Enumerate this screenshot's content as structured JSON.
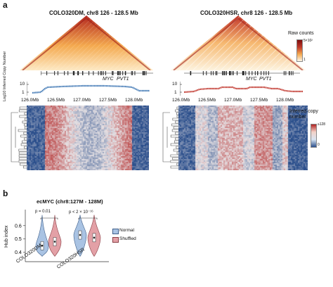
{
  "panel_a": {
    "letter": "a",
    "left": {
      "title": "COLO320DM, chr8 126 - 128.5 Mb",
      "genes": [
        "MYC",
        "PVT1"
      ],
      "xticks": [
        "126.0Mb",
        "126.5Mb",
        "127.0Mb",
        "127.5Mb",
        "128.0Mb"
      ],
      "y_ticks": [
        "10",
        "1"
      ]
    },
    "right": {
      "title": "COLO320HSR, chr8 126 - 128.5 Mb",
      "genes": [
        "MYC",
        "PVT1"
      ],
      "xticks": [
        "126.0Mb",
        "126.5Mb",
        "127.0Mb",
        "127.5Mb",
        "128.0Mb"
      ],
      "y_ticks": [
        "10",
        "1"
      ]
    },
    "y_axis_label": "Log10 Inferred Copy Number",
    "raw_counts_legend": {
      "title": "Raw counts",
      "max": "5×10²",
      "min": "1"
    },
    "copy_legend": {
      "title": "Inferred copy number",
      "max": "≥128",
      "min": "0"
    },
    "colors": {
      "hic_hot": "#b3261e",
      "hic_warm": "#f4a94e",
      "hic_light": "#fde9c4",
      "copy_line_dm": "#3f77b4",
      "copy_line_hsr": "#c0342b",
      "heat_blue": "#2b4f8c",
      "heat_red": "#c0392b"
    }
  },
  "panel_b": {
    "letter": "b",
    "title": "ecMYC (chr8:127M - 128M)",
    "ylabel": "Hub index",
    "yticks": [
      "0.4",
      "0.5",
      "0.6"
    ],
    "categories": [
      "COLO320DM",
      "COLO320HSR"
    ],
    "pvalues": [
      "p = 0.01",
      "p < 2 × 10⁻¹⁶"
    ],
    "legend": [
      "Normal",
      "Shuffled"
    ],
    "colors": {
      "normal": "#a9c3e3",
      "shuffled": "#e3a0a6"
    }
  },
  "chart_data": {
    "type": "violin",
    "title": "ecMYC (chr8:127M - 128M)",
    "ylabel": "Hub index",
    "ylim": [
      0.33,
      0.72
    ],
    "categories": [
      "COLO320DM",
      "COLO320HSR"
    ],
    "series": [
      {
        "name": "Normal",
        "medians": [
          0.45,
          0.53
        ]
      },
      {
        "name": "Shuffled",
        "medians": [
          0.48,
          0.51
        ]
      }
    ]
  }
}
